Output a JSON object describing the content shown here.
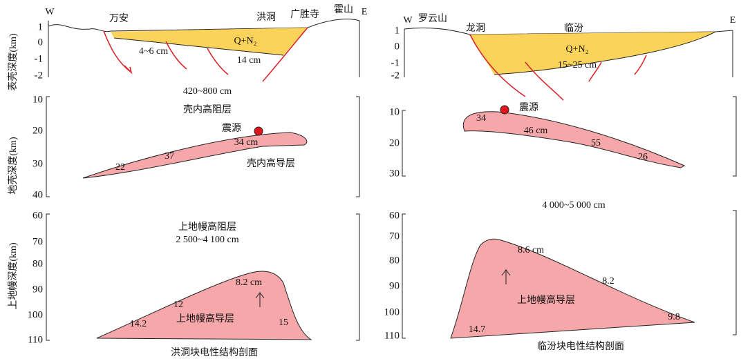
{
  "left": {
    "caption": "洪洞块电性结构剖面",
    "surface": {
      "axis_label": "表壳深度(km)",
      "ticks": [
        1,
        0,
        -1,
        -2
      ],
      "west": "W",
      "east": "E",
      "places": [
        "万安",
        "洪洞",
        "广胜寺",
        "霍山"
      ],
      "sediment": "Q+N₂",
      "labels": [
        "4~6 cm",
        "14 cm"
      ]
    },
    "crust": {
      "axis_label": "地壳深度(km)",
      "ticks": [
        10,
        20,
        30,
        40
      ],
      "resistive": "420~800 cm",
      "resistive_name": "壳内高阻层",
      "source": "震源",
      "conductor_name": "壳内高导层",
      "labels": [
        "34 cm",
        "37",
        "22"
      ]
    },
    "mantle": {
      "axis_label": "上地幔深度(km)",
      "ticks": [
        60,
        70,
        80,
        90,
        100,
        110
      ],
      "resistive_name": "上地幔高阻层",
      "resistive": "2 500~4 100 cm",
      "conductor_name": "上地幔高导层",
      "labels": [
        "8.2 cm",
        "12",
        "14.2",
        "15"
      ]
    }
  },
  "right": {
    "caption": "临汾块电性结构剖面",
    "surface": {
      "ticks": [
        1,
        0,
        -1,
        -2
      ],
      "west": "W",
      "east": "E",
      "places": [
        "罗云山",
        "龙洞",
        "临汾"
      ],
      "sediment": "Q+N₂",
      "labels": [
        "15~25 cm"
      ]
    },
    "crust": {
      "ticks": [
        10,
        20,
        30
      ],
      "source": "震源",
      "labels": [
        "34",
        "46 cm",
        "55",
        "26"
      ],
      "resistive": "4 000~5 000 cm"
    },
    "mantle": {
      "ticks": [
        60,
        70,
        80,
        90,
        100,
        110
      ],
      "conductor_name": "上地幔高导层",
      "labels": [
        "8.6 cm",
        "8.2",
        "14.7",
        "9.8"
      ]
    }
  }
}
